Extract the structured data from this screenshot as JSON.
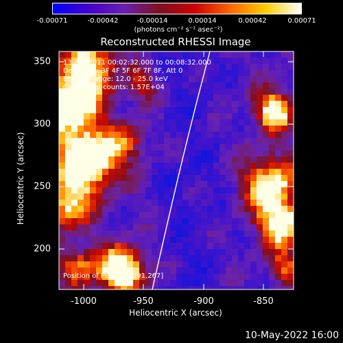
{
  "colorbar": {
    "tick_labels": [
      "-0.00071",
      "-0.00042",
      "-0.00014",
      "0.00014",
      "0.00042",
      "0.00071"
    ],
    "units": "(photons cm⁻² s⁻¹ asec⁻²)",
    "colors": [
      "#0000ff",
      "#4400cc",
      "#6a1fb0",
      "#7f1020",
      "#cc0000",
      "#ff6600",
      "#ffcc00",
      "#ffffff"
    ]
  },
  "title": "Reconstructed RHESSI Image",
  "info": {
    "time_range": "13-Apr-2011 00:02:32.000 to 00:08:32.000",
    "detectors": "Detectors: 3F 4F 5F 6F 7F 8F, Att 0",
    "energy": "Energy Range: 12.0 - 25.0 keV",
    "method": "Clean    Total counts: 1.57E+04",
    "position": "Position of Peak = [-991,267]"
  },
  "axes": {
    "xlabel": "Heliocentric X (arcsec)",
    "ylabel": "Heliocentric Y (arcsec)",
    "xticks": [
      "-1000",
      "-950",
      "-900",
      "-850"
    ],
    "yticks": [
      "350",
      "300",
      "250",
      "200"
    ]
  },
  "footer": {
    "timestamp": "10-May-2022 16:00"
  }
}
